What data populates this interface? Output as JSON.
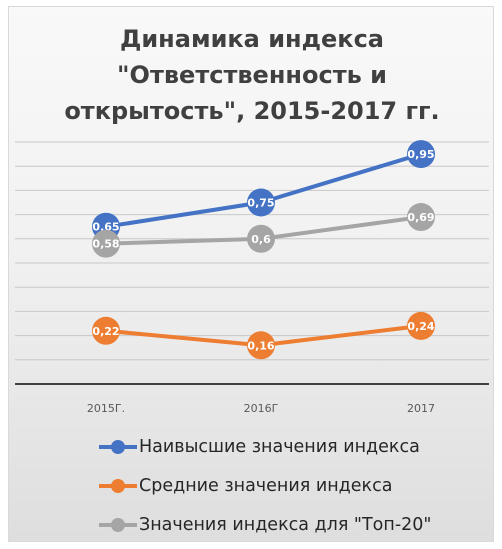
{
  "chart_data": {
    "type": "line",
    "title_lines": [
      "Динамика индекса",
      "\"Ответственность и",
      "открытость\", 2015-2017 гг."
    ],
    "categories": [
      "2015Г.",
      "2016Г",
      "2017"
    ],
    "series": [
      {
        "name": "Наивысшие значения индекса",
        "color": "#4472c4",
        "values": [
          0.65,
          0.75,
          0.95
        ],
        "labels": [
          "0,65",
          "0,75",
          "0,95"
        ]
      },
      {
        "name": "Средние значения индекса",
        "color": "#ed7d31",
        "values": [
          0.22,
          0.16,
          0.24
        ],
        "labels": [
          "0,22",
          "0,16",
          "0,24"
        ]
      },
      {
        "name": "Значения индекса для \"Топ-20\"",
        "color": "#a5a5a5",
        "values": [
          0.58,
          0.6,
          0.69
        ],
        "labels": [
          "0,58",
          "0,6",
          "0,69"
        ]
      }
    ],
    "ylim": [
      0,
      1
    ],
    "grid": true,
    "legend_position": "bottom"
  }
}
